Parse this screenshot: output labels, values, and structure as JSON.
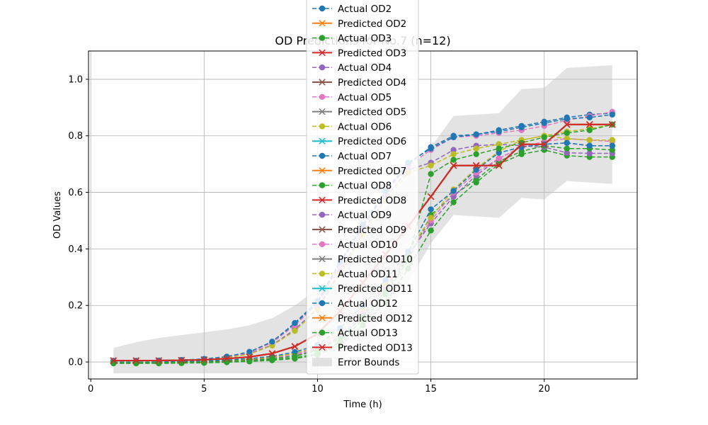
{
  "chart_data": {
    "type": "line",
    "title": "OD Predictions for No.7 (n=12)",
    "xlabel": "Time (h)",
    "ylabel": "OD Values",
    "xlim": [
      -0.1,
      24.1
    ],
    "ylim": [
      -0.06,
      1.1
    ],
    "xticks": [
      0,
      5,
      10,
      15,
      20
    ],
    "yticks": [
      0.0,
      0.2,
      0.4,
      0.6,
      0.8,
      1.0
    ],
    "xtick_labels": [
      "0",
      "5",
      "10",
      "15",
      "20"
    ],
    "ytick_labels": [
      "0.0",
      "0.2",
      "0.4",
      "0.6",
      "0.8",
      "1.0"
    ],
    "grid": true,
    "legend_position": "top-center",
    "x": [
      1,
      2,
      3,
      4,
      5,
      6,
      7,
      8,
      9,
      10,
      11,
      12,
      13,
      14,
      15,
      16,
      17,
      18,
      19,
      20,
      21,
      22,
      23
    ],
    "error_bounds": {
      "name": "Error Bounds",
      "color": "#c0c0c0",
      "upper": [
        0.05,
        0.07,
        0.085,
        0.095,
        0.105,
        0.115,
        0.13,
        0.155,
        0.2,
        0.26,
        0.34,
        0.44,
        0.55,
        0.68,
        0.76,
        0.87,
        0.875,
        0.88,
        0.965,
        0.97,
        1.04,
        1.045,
        1.05
      ],
      "lower": [
        -0.04,
        -0.04,
        -0.04,
        -0.04,
        -0.04,
        -0.04,
        -0.04,
        -0.04,
        -0.04,
        -0.04,
        0.0,
        0.07,
        0.16,
        0.28,
        0.42,
        0.52,
        0.515,
        0.51,
        0.58,
        0.575,
        0.64,
        0.635,
        0.63
      ]
    },
    "series": [
      {
        "name": "Actual OD2",
        "kind": "actual",
        "color": "#1f77b4",
        "values": [
          0.004,
          0.004,
          0.005,
          0.007,
          0.01,
          0.018,
          0.035,
          0.07,
          0.135,
          0.21,
          0.35,
          0.48,
          0.6,
          0.7,
          0.76,
          0.8,
          0.805,
          0.82,
          0.835,
          0.85,
          0.865,
          0.875,
          0.88
        ]
      },
      {
        "name": "Predicted OD2",
        "kind": "predicted",
        "color": "#ff7f0e",
        "values": [
          0.005,
          0.005,
          0.005,
          0.006,
          0.008,
          0.012,
          0.018,
          0.03,
          0.055,
          0.1,
          0.18,
          0.28,
          0.38,
          0.48,
          0.585,
          0.695,
          0.695,
          0.695,
          0.77,
          0.77,
          0.84,
          0.84,
          0.84
        ]
      },
      {
        "name": "Actual OD3",
        "kind": "actual",
        "color": "#2ca02c",
        "values": [
          -0.005,
          -0.005,
          -0.005,
          -0.004,
          -0.003,
          -0.001,
          0.002,
          0.006,
          0.012,
          0.025,
          0.06,
          0.13,
          0.21,
          0.33,
          0.465,
          0.565,
          0.635,
          0.7,
          0.735,
          0.75,
          0.73,
          0.725,
          0.725
        ]
      },
      {
        "name": "Predicted OD3",
        "kind": "predicted",
        "color": "#d62728",
        "values": [
          0.005,
          0.005,
          0.005,
          0.006,
          0.008,
          0.012,
          0.018,
          0.03,
          0.055,
          0.1,
          0.18,
          0.28,
          0.38,
          0.48,
          0.585,
          0.695,
          0.695,
          0.695,
          0.77,
          0.77,
          0.84,
          0.84,
          0.84
        ]
      },
      {
        "name": "Actual OD4",
        "kind": "actual",
        "color": "#9467bd",
        "values": [
          0.003,
          0.003,
          0.004,
          0.006,
          0.01,
          0.016,
          0.03,
          0.06,
          0.115,
          0.19,
          0.32,
          0.46,
          0.58,
          0.68,
          0.705,
          0.75,
          0.765,
          0.77,
          0.765,
          0.76,
          0.74,
          0.738,
          0.738
        ]
      },
      {
        "name": "Predicted OD4",
        "kind": "predicted",
        "color": "#8c564b",
        "values": [
          0.005,
          0.005,
          0.005,
          0.006,
          0.008,
          0.012,
          0.018,
          0.03,
          0.055,
          0.1,
          0.18,
          0.28,
          0.38,
          0.48,
          0.585,
          0.695,
          0.695,
          0.695,
          0.77,
          0.77,
          0.84,
          0.84,
          0.84
        ]
      },
      {
        "name": "Actual OD5",
        "kind": "actual",
        "color": "#e377c2",
        "values": [
          0.004,
          0.004,
          0.005,
          0.007,
          0.01,
          0.018,
          0.034,
          0.068,
          0.13,
          0.205,
          0.345,
          0.475,
          0.595,
          0.695,
          0.75,
          0.795,
          0.8,
          0.81,
          0.82,
          0.835,
          0.855,
          0.87,
          0.885
        ]
      },
      {
        "name": "Predicted OD5",
        "kind": "predicted",
        "color": "#7f7f7f",
        "values": [
          0.005,
          0.005,
          0.005,
          0.006,
          0.008,
          0.012,
          0.018,
          0.03,
          0.055,
          0.1,
          0.18,
          0.28,
          0.38,
          0.48,
          0.585,
          0.695,
          0.695,
          0.695,
          0.77,
          0.77,
          0.84,
          0.84,
          0.84
        ]
      },
      {
        "name": "Actual OD6",
        "kind": "actual",
        "color": "#bcbd22",
        "values": [
          0.003,
          0.003,
          0.004,
          0.006,
          0.009,
          0.015,
          0.028,
          0.058,
          0.11,
          0.185,
          0.31,
          0.45,
          0.57,
          0.67,
          0.695,
          0.735,
          0.755,
          0.77,
          0.785,
          0.8,
          0.815,
          0.825,
          0.84
        ]
      },
      {
        "name": "Predicted OD6",
        "kind": "predicted",
        "color": "#17becf",
        "values": [
          0.005,
          0.005,
          0.005,
          0.006,
          0.008,
          0.012,
          0.018,
          0.03,
          0.055,
          0.1,
          0.18,
          0.28,
          0.38,
          0.48,
          0.585,
          0.695,
          0.695,
          0.695,
          0.77,
          0.77,
          0.84,
          0.84,
          0.84
        ]
      },
      {
        "name": "Actual OD7",
        "kind": "actual",
        "color": "#1f77b4",
        "values": [
          0.004,
          0.004,
          0.005,
          0.007,
          0.011,
          0.019,
          0.036,
          0.072,
          0.138,
          0.215,
          0.355,
          0.485,
          0.605,
          0.705,
          0.755,
          0.795,
          0.805,
          0.815,
          0.83,
          0.845,
          0.86,
          0.865,
          0.875
        ]
      },
      {
        "name": "Predicted OD7",
        "kind": "predicted",
        "color": "#ff7f0e",
        "values": [
          0.005,
          0.005,
          0.005,
          0.006,
          0.008,
          0.012,
          0.018,
          0.03,
          0.055,
          0.1,
          0.18,
          0.28,
          0.38,
          0.48,
          0.585,
          0.695,
          0.695,
          0.695,
          0.77,
          0.77,
          0.84,
          0.84,
          0.84
        ]
      },
      {
        "name": "Actual OD8",
        "kind": "actual",
        "color": "#2ca02c",
        "values": [
          -0.004,
          -0.004,
          -0.004,
          -0.003,
          -0.002,
          0.0,
          0.003,
          0.008,
          0.015,
          0.03,
          0.07,
          0.15,
          0.24,
          0.36,
          0.52,
          0.59,
          0.645,
          0.71,
          0.745,
          0.765,
          0.755,
          0.755,
          0.75
        ]
      },
      {
        "name": "Predicted OD8",
        "kind": "predicted",
        "color": "#d62728",
        "values": [
          0.005,
          0.005,
          0.005,
          0.006,
          0.008,
          0.012,
          0.018,
          0.03,
          0.055,
          0.1,
          0.18,
          0.28,
          0.38,
          0.48,
          0.585,
          0.695,
          0.695,
          0.695,
          0.77,
          0.77,
          0.84,
          0.84,
          0.84
        ]
      },
      {
        "name": "Actual OD9",
        "kind": "actual",
        "color": "#9467bd",
        "values": [
          -0.002,
          -0.002,
          -0.001,
          0.0,
          0.001,
          0.003,
          0.006,
          0.012,
          0.022,
          0.045,
          0.09,
          0.17,
          0.26,
          0.38,
          0.49,
          0.585,
          0.66,
          0.72,
          0.76,
          0.77,
          0.775,
          0.765,
          0.765
        ]
      },
      {
        "name": "Predicted OD9",
        "kind": "predicted",
        "color": "#8c564b",
        "values": [
          0.005,
          0.005,
          0.005,
          0.006,
          0.008,
          0.012,
          0.018,
          0.03,
          0.055,
          0.1,
          0.18,
          0.28,
          0.38,
          0.48,
          0.585,
          0.695,
          0.695,
          0.695,
          0.77,
          0.77,
          0.84,
          0.84,
          0.84
        ]
      },
      {
        "name": "Actual OD10",
        "kind": "actual",
        "color": "#e377c2",
        "values": [
          -0.002,
          -0.002,
          -0.001,
          0.0,
          0.002,
          0.004,
          0.008,
          0.015,
          0.027,
          0.05,
          0.1,
          0.18,
          0.27,
          0.38,
          0.5,
          0.6,
          0.67,
          0.72,
          0.76,
          0.78,
          0.79,
          0.785,
          0.78
        ]
      },
      {
        "name": "Predicted OD10",
        "kind": "predicted",
        "color": "#7f7f7f",
        "values": [
          0.005,
          0.005,
          0.005,
          0.006,
          0.008,
          0.012,
          0.018,
          0.03,
          0.055,
          0.1,
          0.18,
          0.28,
          0.38,
          0.48,
          0.585,
          0.695,
          0.695,
          0.695,
          0.77,
          0.77,
          0.84,
          0.84,
          0.84
        ]
      },
      {
        "name": "Actual OD11",
        "kind": "actual",
        "color": "#bcbd22",
        "values": [
          -0.001,
          -0.001,
          0.0,
          0.001,
          0.003,
          0.005,
          0.01,
          0.018,
          0.03,
          0.055,
          0.11,
          0.19,
          0.28,
          0.39,
          0.51,
          0.61,
          0.685,
          0.745,
          0.785,
          0.8,
          0.79,
          0.785,
          0.785
        ]
      },
      {
        "name": "Predicted OD11",
        "kind": "predicted",
        "color": "#17becf",
        "values": [
          0.005,
          0.005,
          0.005,
          0.006,
          0.008,
          0.012,
          0.018,
          0.03,
          0.055,
          0.1,
          0.18,
          0.28,
          0.38,
          0.48,
          0.585,
          0.695,
          0.695,
          0.695,
          0.77,
          0.77,
          0.84,
          0.84,
          0.84
        ]
      },
      {
        "name": "Actual OD12",
        "kind": "actual",
        "color": "#1f77b4",
        "values": [
          -0.001,
          -0.001,
          0.0,
          0.002,
          0.004,
          0.007,
          0.012,
          0.02,
          0.035,
          0.06,
          0.12,
          0.2,
          0.29,
          0.39,
          0.54,
          0.605,
          0.68,
          0.74,
          0.76,
          0.77,
          0.775,
          0.765,
          0.765
        ]
      },
      {
        "name": "Predicted OD12",
        "kind": "predicted",
        "color": "#ff7f0e",
        "values": [
          0.005,
          0.005,
          0.005,
          0.006,
          0.008,
          0.012,
          0.018,
          0.03,
          0.055,
          0.1,
          0.18,
          0.28,
          0.38,
          0.48,
          0.585,
          0.695,
          0.695,
          0.695,
          0.77,
          0.77,
          0.84,
          0.84,
          0.84
        ]
      },
      {
        "name": "Actual OD13",
        "kind": "actual",
        "color": "#2ca02c",
        "values": [
          -0.003,
          -0.003,
          -0.002,
          -0.001,
          0.001,
          0.003,
          0.006,
          0.012,
          0.02,
          0.04,
          0.085,
          0.16,
          0.25,
          0.37,
          0.665,
          0.715,
          0.735,
          0.755,
          0.775,
          0.795,
          0.81,
          0.82,
          0.84
        ]
      },
      {
        "name": "Predicted OD13",
        "kind": "predicted",
        "color": "#d62728",
        "values": [
          0.005,
          0.005,
          0.005,
          0.006,
          0.008,
          0.012,
          0.018,
          0.03,
          0.055,
          0.1,
          0.18,
          0.28,
          0.38,
          0.48,
          0.585,
          0.695,
          0.695,
          0.695,
          0.77,
          0.77,
          0.84,
          0.84,
          0.84
        ]
      }
    ]
  }
}
